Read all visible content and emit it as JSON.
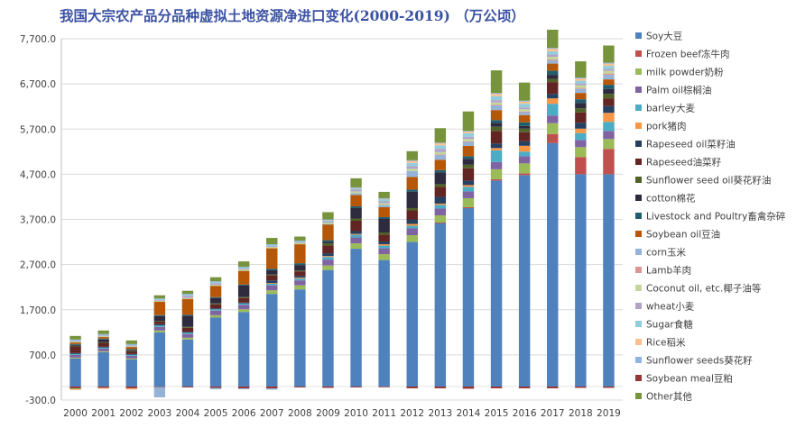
{
  "chart_data": {
    "type": "bar",
    "stacked": true,
    "title": "我国大宗农产品分品种虚拟土地资源净进口变化(2000-2019) （万公顷）",
    "xlabel": "",
    "ylabel": "",
    "ylim": [
      -300,
      7700
    ],
    "yticks": [
      -300,
      700,
      1700,
      2700,
      3700,
      4700,
      5700,
      6700,
      7700
    ],
    "ytick_labels": [
      "-300.0",
      "700.0",
      "1,700.0",
      "2,700.0",
      "3,700.0",
      "4,700.0",
      "5,700.0",
      "6,700.0",
      "7,700.0"
    ],
    "grid": true,
    "legend_position": "right",
    "categories": [
      "2000",
      "2001",
      "2002",
      "2003",
      "2004",
      "2005",
      "2006",
      "2007",
      "2008",
      "2009",
      "2010",
      "2011",
      "2012",
      "2013",
      "2014",
      "2015",
      "2016",
      "2017",
      "2018",
      "2019"
    ],
    "series": [
      {
        "name": "Soy大豆",
        "color": "#4f81bd",
        "values": [
          620,
          760,
          600,
          1200,
          1040,
          1530,
          1650,
          2050,
          2150,
          2580,
          3050,
          2800,
          3200,
          3620,
          3950,
          4560,
          4680,
          5390,
          4700,
          4700
        ]
      },
      {
        "name": "Frozen beef冻牛肉",
        "color": "#c0504d",
        "values": [
          0,
          0,
          0,
          0,
          0,
          0,
          0,
          0,
          0,
          0,
          0,
          0,
          0,
          10,
          20,
          30,
          40,
          200,
          380,
          560
        ]
      },
      {
        "name": "milk powder奶粉",
        "color": "#9bbb59",
        "values": [
          20,
          20,
          20,
          40,
          40,
          50,
          60,
          80,
          90,
          100,
          120,
          130,
          150,
          160,
          200,
          220,
          220,
          240,
          220,
          220
        ]
      },
      {
        "name": "Palm oil棕榈油",
        "color": "#8064a2",
        "values": [
          60,
          60,
          60,
          80,
          80,
          100,
          100,
          110,
          110,
          130,
          130,
          130,
          150,
          150,
          150,
          160,
          160,
          170,
          160,
          180
        ]
      },
      {
        "name": "barley大麦",
        "color": "#4bacc6",
        "values": [
          30,
          30,
          30,
          30,
          30,
          30,
          30,
          40,
          40,
          60,
          60,
          60,
          60,
          80,
          100,
          260,
          100,
          260,
          150,
          200
        ]
      },
      {
        "name": "pork猪肉",
        "color": "#f79646",
        "values": [
          0,
          0,
          0,
          0,
          0,
          0,
          0,
          10,
          20,
          20,
          20,
          30,
          40,
          30,
          40,
          50,
          130,
          120,
          100,
          200
        ]
      },
      {
        "name": "Rapeseed oil菜籽油",
        "color": "#254061",
        "values": [
          10,
          10,
          10,
          30,
          20,
          20,
          20,
          60,
          40,
          60,
          60,
          60,
          100,
          150,
          100,
          100,
          100,
          100,
          130,
          150
        ]
      },
      {
        "name": "Rapeseed油菜籽",
        "color": "#632523",
        "values": [
          150,
          90,
          60,
          60,
          90,
          90,
          100,
          110,
          100,
          170,
          230,
          150,
          200,
          220,
          270,
          280,
          200,
          260,
          230,
          170
        ]
      },
      {
        "name": "Sunflower seed oil葵花籽油",
        "color": "#4f6228",
        "values": [
          10,
          10,
          10,
          10,
          20,
          20,
          20,
          20,
          20,
          50,
          50,
          50,
          50,
          60,
          80,
          90,
          80,
          70,
          90,
          100
        ]
      },
      {
        "name": "cotton棉花",
        "color": "#2f2b3e",
        "values": [
          20,
          60,
          20,
          110,
          250,
          120,
          260,
          100,
          120,
          30,
          230,
          300,
          360,
          260,
          130,
          90,
          60,
          90,
          120,
          110
        ]
      },
      {
        "name": "Livestock and Poultry畜禽杂碎",
        "color": "#215d6e",
        "values": [
          20,
          20,
          20,
          20,
          20,
          20,
          20,
          30,
          40,
          40,
          40,
          40,
          50,
          50,
          60,
          60,
          80,
          90,
          80,
          90
        ]
      },
      {
        "name": "Soybean oil豆油",
        "color": "#b65708",
        "values": [
          40,
          40,
          50,
          300,
          350,
          250,
          300,
          450,
          420,
          350,
          250,
          220,
          280,
          230,
          230,
          220,
          160,
          160,
          140,
          120
        ]
      },
      {
        "name": "corn玉米",
        "color": "#95b3d7",
        "values": [
          0,
          0,
          0,
          0,
          0,
          0,
          0,
          0,
          0,
          10,
          40,
          50,
          130,
          110,
          90,
          110,
          70,
          70,
          90,
          100
        ]
      },
      {
        "name": "Lamb羊肉",
        "color": "#d99694",
        "values": [
          0,
          0,
          0,
          0,
          0,
          0,
          0,
          0,
          0,
          0,
          0,
          0,
          0,
          10,
          10,
          10,
          10,
          20,
          20,
          30
        ]
      },
      {
        "name": "Coconut oil, etc.椰子油等",
        "color": "#c3d69b",
        "values": [
          10,
          10,
          10,
          20,
          20,
          20,
          30,
          30,
          30,
          30,
          40,
          40,
          50,
          50,
          50,
          50,
          50,
          60,
          60,
          60
        ]
      },
      {
        "name": "wheat小麦",
        "color": "#b3a2c7",
        "values": [
          20,
          20,
          20,
          20,
          50,
          40,
          20,
          20,
          20,
          20,
          40,
          40,
          60,
          70,
          50,
          50,
          40,
          50,
          40,
          40
        ]
      },
      {
        "name": "Sugar食糖",
        "color": "#92cddc",
        "values": [
          20,
          20,
          20,
          20,
          30,
          30,
          30,
          30,
          20,
          30,
          30,
          50,
          70,
          80,
          80,
          90,
          80,
          70,
          60,
          70
        ]
      },
      {
        "name": "Rice稻米",
        "color": "#fac090",
        "values": [
          0,
          0,
          0,
          0,
          0,
          0,
          0,
          0,
          0,
          10,
          10,
          10,
          50,
          50,
          40,
          50,
          50,
          60,
          50,
          50
        ]
      },
      {
        "name": "Sunflower seeds葵花籽",
        "color": "#8eb4e3",
        "values": [
          10,
          10,
          10,
          10,
          10,
          10,
          10,
          10,
          10,
          10,
          10,
          10,
          10,
          10,
          10,
          20,
          20,
          20,
          20,
          20
        ]
      },
      {
        "name": "Soybean meal豆粕",
        "color": "#953735",
        "values": [
          -40,
          -30,
          -40,
          -10,
          -20,
          -30,
          -40,
          -40,
          -20,
          -30,
          -20,
          -10,
          -40,
          -40,
          -50,
          -40,
          -40,
          -40,
          -30,
          -30
        ]
      },
      {
        "name": "Other其他",
        "color": "#77933c",
        "values": [
          80,
          80,
          80,
          70,
          70,
          90,
          120,
          140,
          90,
          160,
          200,
          140,
          200,
          320,
          430,
          500,
          400,
          400,
          360,
          380
        ]
      }
    ],
    "negative_extras": [
      {
        "category": "2000",
        "values": [
          {
            "color": "#9bbb59",
            "v": -20
          },
          {
            "color": "#fac090",
            "v": -20
          }
        ]
      },
      {
        "category": "2001",
        "values": [
          {
            "color": "#fac090",
            "v": -20
          }
        ]
      },
      {
        "category": "2002",
        "values": [
          {
            "color": "#fac090",
            "v": -30
          }
        ]
      },
      {
        "category": "2003",
        "values": [
          {
            "color": "#95b3d7",
            "v": -230
          }
        ]
      },
      {
        "category": "2005",
        "values": [
          {
            "color": "#95b3d7",
            "v": -30
          }
        ]
      },
      {
        "category": "2006",
        "values": [
          {
            "color": "#95b3d7",
            "v": -20
          }
        ]
      },
      {
        "category": "2007",
        "values": [
          {
            "color": "#95b3d7",
            "v": -30
          }
        ]
      }
    ]
  }
}
